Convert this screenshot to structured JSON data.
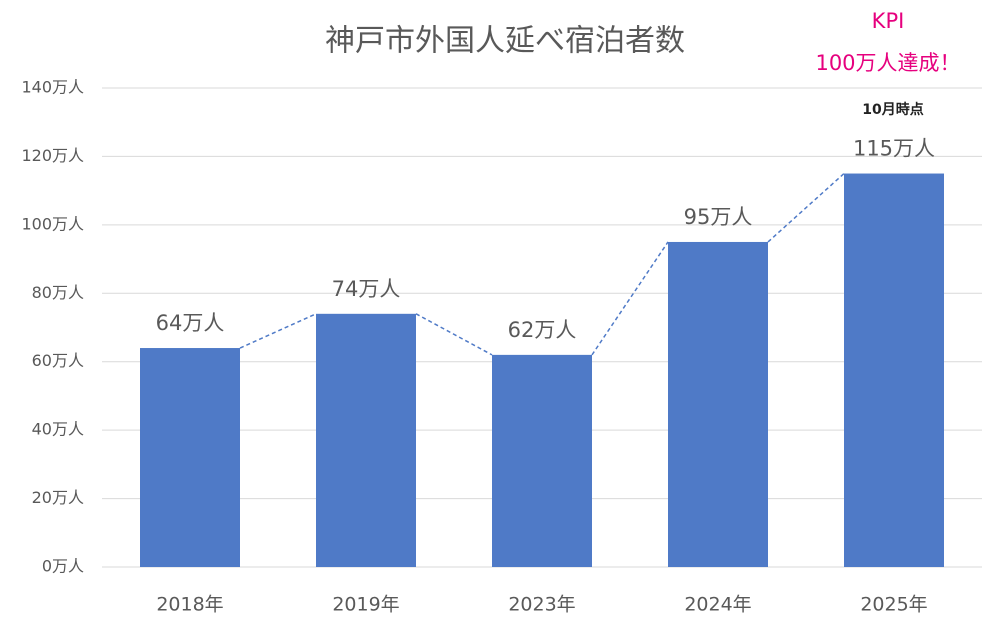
{
  "chart_data": {
    "type": "bar",
    "title": "神戸市外国人延べ宿泊者数",
    "categories": [
      "2018年",
      "2019年",
      "2023年",
      "2024年",
      "2025年"
    ],
    "values": [
      64,
      74,
      62,
      95,
      115
    ],
    "value_labels": [
      "64万人",
      "74万人",
      "62万人",
      "95万人",
      "115万人"
    ],
    "color": "#4f7ac7",
    "connector": true,
    "ylim": [
      0,
      140
    ],
    "yticks": [
      {
        "value": 0,
        "label": "0万人"
      },
      {
        "value": 20,
        "label": "20万人"
      },
      {
        "value": 40,
        "label": "40万人"
      },
      {
        "value": 60,
        "label": "60万人"
      },
      {
        "value": 80,
        "label": "80万人"
      },
      {
        "value": 100,
        "label": "100万人"
      },
      {
        "value": 120,
        "label": "120万人"
      },
      {
        "value": 140,
        "label": "140万人"
      }
    ],
    "grid": true,
    "annotations": [
      "KPI",
      "100万人達成！",
      "10月時点"
    ]
  }
}
